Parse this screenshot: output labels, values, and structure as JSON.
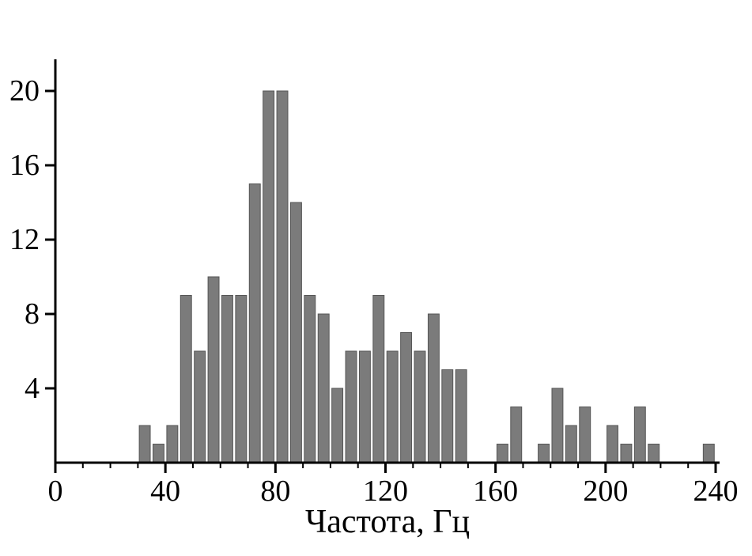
{
  "chart_data": {
    "type": "bar",
    "title": "",
    "xlabel": "Частота, Гц",
    "ylabel": "",
    "xlim": [
      0,
      240
    ],
    "ylim": [
      0,
      21.5
    ],
    "x_major_ticks": [
      0,
      40,
      80,
      120,
      160,
      200,
      240
    ],
    "x_minor_step": 10,
    "y_ticks": [
      4,
      8,
      12,
      16,
      20
    ],
    "bin_width": 5,
    "legend": "none",
    "grid": false,
    "bar_color": "#7b7b7b",
    "bar_edge_color": "#565656",
    "axis_color": "#000000",
    "bars": [
      {
        "x": 30,
        "h": 2
      },
      {
        "x": 35,
        "h": 1
      },
      {
        "x": 40,
        "h": 2
      },
      {
        "x": 45,
        "h": 9
      },
      {
        "x": 50,
        "h": 6
      },
      {
        "x": 55,
        "h": 10
      },
      {
        "x": 60,
        "h": 9
      },
      {
        "x": 65,
        "h": 9
      },
      {
        "x": 70,
        "h": 15
      },
      {
        "x": 75,
        "h": 20
      },
      {
        "x": 80,
        "h": 20
      },
      {
        "x": 85,
        "h": 14
      },
      {
        "x": 90,
        "h": 9
      },
      {
        "x": 95,
        "h": 8
      },
      {
        "x": 100,
        "h": 4
      },
      {
        "x": 105,
        "h": 6
      },
      {
        "x": 110,
        "h": 6
      },
      {
        "x": 115,
        "h": 9
      },
      {
        "x": 120,
        "h": 6
      },
      {
        "x": 125,
        "h": 7
      },
      {
        "x": 130,
        "h": 6
      },
      {
        "x": 135,
        "h": 8
      },
      {
        "x": 140,
        "h": 5
      },
      {
        "x": 145,
        "h": 5
      },
      {
        "x": 160,
        "h": 1
      },
      {
        "x": 165,
        "h": 3
      },
      {
        "x": 175,
        "h": 1
      },
      {
        "x": 180,
        "h": 4
      },
      {
        "x": 185,
        "h": 2
      },
      {
        "x": 190,
        "h": 3
      },
      {
        "x": 200,
        "h": 2
      },
      {
        "x": 205,
        "h": 1
      },
      {
        "x": 210,
        "h": 3
      },
      {
        "x": 215,
        "h": 1
      },
      {
        "x": 235,
        "h": 1
      }
    ]
  }
}
